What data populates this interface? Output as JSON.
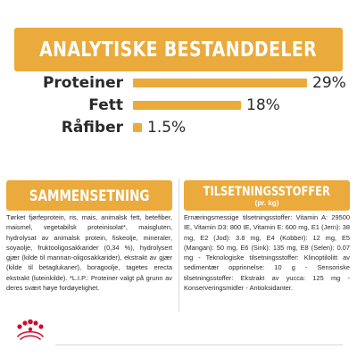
{
  "header": {
    "title": "ANALYTISKE BESTANDDELER"
  },
  "nutrients": [
    {
      "label": "Proteiner",
      "value": "29%",
      "percent": 29
    },
    {
      "label": "Fett",
      "value": "18%",
      "percent": 18
    },
    {
      "label": "Råfiber",
      "value": "1.5%",
      "percent": 1.5
    }
  ],
  "composition": {
    "title": "SAMMENSETNING",
    "text": "Tørket fjørfeprotein, ris, mais, animalsk fett, betefiber, maismel, vegetabilsk proteinisolat*, maisgluten, hydrolysat av animalsk protein, fiskeolje, mineraler, soyaolje, fruktooligosakkarider (0,34 %), hydrolysert gjær (kilde til mannan-oligosakkarider), ekstrakt av gjær (kilde til betaglukaner), boragoolje, tagetes erecta ekstrakt (luteinkilde). *L.I.P.: Proteiner valgt på grunn av deres svært høye fordøyelighet."
  },
  "additives": {
    "title": "TILSETNINGSSTOFFER",
    "subtitle": "(pr. kg)",
    "text": "Ernæringsmessige tilsetningsstoffer: Vitamin A: 29500 IE, Vitamin D3: 800 IE, Vitamin E: 600 mg, E1 (Jern): 38 mg, E2 (Jod): 3.8 mg, E4 (Kobber): 12 mg, E5 (Mangan): 50 mg, E6 (Sink): 135 mg, E8 (Selen): 0.07 mg - Teknologiske tilsetningsstoffer: Klinoptilolitt av sedimentær opprinnelse: 10 g - Sensoriske tilsetningsstoffer: Ekstrakt av yucca: 125 mg - Konserveringsmidler - Antioksidanter."
  },
  "colors": {
    "accent": "#eaaa3c",
    "text": "#2a2a2a",
    "logo": "#c8102e"
  },
  "logo": {
    "icon": "royal-canin-crown-logo"
  }
}
